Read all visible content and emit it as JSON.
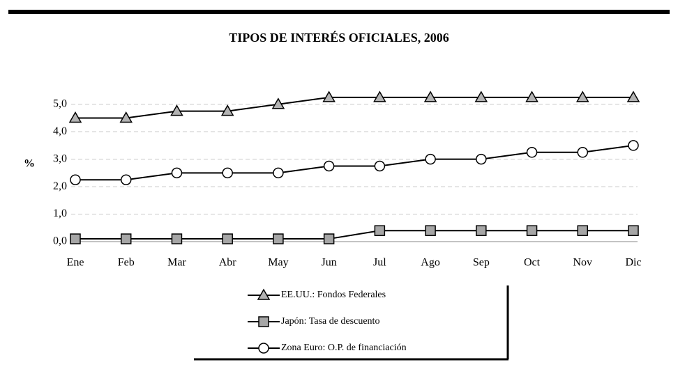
{
  "chart_data": {
    "type": "line",
    "title": "TIPOS DE INTERÉS OFICIALES, 2006",
    "y_label": "%",
    "categories": [
      "Ene",
      "Feb",
      "Mar",
      "Abr",
      "May",
      "Jun",
      "Jul",
      "Ago",
      "Sep",
      "Oct",
      "Nov",
      "Dic"
    ],
    "series": [
      {
        "name": "EE.UU.: Fondos Federales",
        "color": "#b3b3b3",
        "marker": "triangle",
        "values": [
          4.5,
          4.5,
          4.75,
          4.75,
          5.0,
          5.25,
          5.25,
          5.25,
          5.25,
          5.25,
          5.25,
          5.25
        ]
      },
      {
        "name": "Japón: Tasa de descuento",
        "color": "#a6a6a6",
        "marker": "square",
        "values": [
          0.1,
          0.1,
          0.1,
          0.1,
          0.1,
          0.1,
          0.4,
          0.4,
          0.4,
          0.4,
          0.4,
          0.4
        ]
      },
      {
        "name": "Zona Euro: O.P. de financiación",
        "color": "#ffffff",
        "marker": "circle",
        "values": [
          2.25,
          2.25,
          2.5,
          2.5,
          2.5,
          2.75,
          2.75,
          3.0,
          3.0,
          3.25,
          3.25,
          3.5
        ]
      }
    ],
    "ylim": [
      0,
      5.5
    ],
    "yticks": [
      {
        "value": 0,
        "label": "0,0"
      },
      {
        "value": 1,
        "label": "1,0"
      },
      {
        "value": 2,
        "label": "2,0"
      },
      {
        "value": 3,
        "label": "3,0"
      },
      {
        "value": 4,
        "label": "4,0"
      },
      {
        "value": 5,
        "label": "5,0"
      }
    ],
    "grid": true
  }
}
